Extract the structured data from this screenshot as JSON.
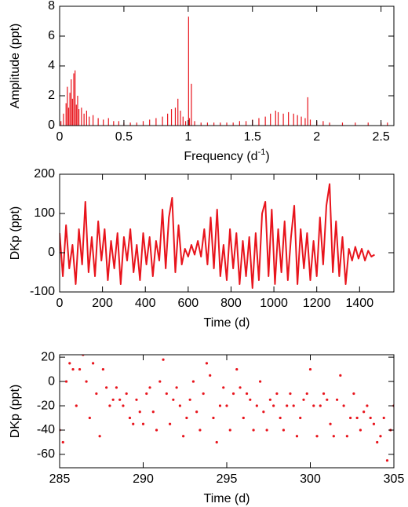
{
  "chart_data": [
    {
      "type": "impulse",
      "xlabel": [
        "Frequency (d",
        "-1",
        ")"
      ],
      "ylabel": "Amplitude (ppt)",
      "xlim": [
        0,
        2.6
      ],
      "ylim": [
        0,
        8
      ],
      "xticks": [
        0,
        0.5,
        1,
        1.5,
        2,
        2.5
      ],
      "yticks": [
        0,
        2,
        4,
        6,
        8
      ],
      "x": [
        0.01,
        0.03,
        0.05,
        0.06,
        0.07,
        0.08,
        0.09,
        0.1,
        0.11,
        0.12,
        0.13,
        0.14,
        0.15,
        0.17,
        0.19,
        0.21,
        0.23,
        0.26,
        0.3,
        0.34,
        0.38,
        0.42,
        0.46,
        0.5,
        0.55,
        0.6,
        0.65,
        0.7,
        0.75,
        0.8,
        0.84,
        0.87,
        0.9,
        0.92,
        0.94,
        0.96,
        0.98,
        1.003,
        1.01,
        1.025,
        1.05,
        1.1,
        1.15,
        1.2,
        1.25,
        1.3,
        1.35,
        1.4,
        1.45,
        1.5,
        1.55,
        1.6,
        1.64,
        1.68,
        1.7,
        1.74,
        1.78,
        1.82,
        1.85,
        1.88,
        1.91,
        1.93,
        1.95,
        2,
        2.05,
        2.1,
        2.2,
        2.3,
        2.4,
        2.5,
        2.55
      ],
      "series": [
        {
          "color": "#e8141c",
          "values": [
            0.3,
            0.8,
            1.5,
            2.6,
            1.2,
            2.2,
            3.1,
            1.8,
            3.5,
            3.7,
            1.4,
            2,
            1.1,
            1.2,
            0.8,
            1,
            0.6,
            0.7,
            0.5,
            0.4,
            0.5,
            0.3,
            0.3,
            0.2,
            0.2,
            0.2,
            0.3,
            0.4,
            0.5,
            0.6,
            0.8,
            1.1,
            1.2,
            1.8,
            1,
            0.6,
            0.3,
            7.3,
            0.5,
            2.8,
            0.3,
            0.2,
            0.2,
            0.2,
            0.2,
            0.2,
            0.2,
            0.3,
            0.3,
            0.4,
            0.5,
            0.6,
            0.8,
            1,
            0.9,
            0.8,
            0.9,
            0.8,
            0.7,
            0.6,
            0.5,
            1.9,
            0.4,
            0.3,
            0.3,
            0.2,
            0.2,
            0.2,
            0.2,
            0.2,
            0.2
          ]
        }
      ]
    },
    {
      "type": "line",
      "xlabel": "Time (d)",
      "ylabel": "DKp (ppt)",
      "xlim": [
        0,
        1560
      ],
      "ylim": [
        -100,
        200
      ],
      "xticks": [
        0,
        200,
        400,
        600,
        800,
        1000,
        1200,
        1400
      ],
      "yticks": [
        -100,
        0,
        100,
        200
      ],
      "x": [
        0,
        15,
        30,
        45,
        60,
        75,
        90,
        105,
        120,
        135,
        150,
        165,
        180,
        195,
        210,
        225,
        240,
        255,
        270,
        285,
        300,
        315,
        330,
        345,
        360,
        375,
        390,
        405,
        420,
        435,
        450,
        465,
        480,
        495,
        510,
        525,
        540,
        555,
        570,
        585,
        600,
        615,
        630,
        645,
        660,
        675,
        690,
        705,
        720,
        735,
        750,
        765,
        780,
        795,
        810,
        825,
        840,
        855,
        870,
        885,
        900,
        915,
        930,
        945,
        960,
        975,
        990,
        1005,
        1020,
        1035,
        1050,
        1065,
        1080,
        1095,
        1110,
        1125,
        1140,
        1155,
        1170,
        1185,
        1200,
        1215,
        1230,
        1245,
        1260,
        1275,
        1290,
        1305,
        1320,
        1335,
        1350,
        1365,
        1380,
        1395,
        1410,
        1425,
        1440,
        1455,
        1470
      ],
      "series": [
        {
          "color": "#e8141c",
          "values": [
            50,
            -60,
            70,
            -40,
            20,
            -80,
            60,
            -30,
            130,
            -50,
            40,
            -60,
            80,
            -20,
            60,
            -70,
            30,
            -40,
            50,
            -80,
            40,
            -20,
            60,
            -50,
            20,
            -70,
            50,
            -30,
            40,
            -60,
            30,
            -20,
            110,
            -40,
            90,
            140,
            -50,
            70,
            -30,
            10,
            -10,
            20,
            -5,
            30,
            -10,
            60,
            -30,
            90,
            -40,
            110,
            -60,
            20,
            -70,
            60,
            -40,
            50,
            -80,
            30,
            -60,
            40,
            -90,
            50,
            -70,
            100,
            130,
            -60,
            110,
            -80,
            60,
            -50,
            80,
            -70,
            40,
            120,
            -80,
            60,
            -40,
            50,
            -70,
            30,
            -60,
            90,
            -30,
            120,
            175,
            -50,
            80,
            -60,
            40,
            -80,
            10,
            -20,
            15,
            -15,
            10,
            -20,
            5,
            -10,
            -5
          ]
        }
      ]
    },
    {
      "type": "scatter",
      "xlabel": "Time (d)",
      "ylabel": "DKp (ppt)",
      "xlim": [
        285,
        305
      ],
      "ylim": [
        -71,
        22
      ],
      "xticks": [
        285,
        290,
        295,
        300,
        305
      ],
      "yticks": [
        -60,
        -40,
        -20,
        0,
        20
      ],
      "x": [
        285,
        285.2,
        285.4,
        285.6,
        285.8,
        286,
        286.2,
        286.4,
        286.6,
        286.8,
        287,
        287.2,
        287.4,
        287.6,
        287.8,
        288,
        288.2,
        288.4,
        288.6,
        288.8,
        289,
        289.2,
        289.4,
        289.6,
        289.8,
        290,
        290.2,
        290.4,
        290.6,
        290.8,
        291,
        291.2,
        291.4,
        291.6,
        291.8,
        292,
        292.2,
        292.4,
        292.6,
        292.8,
        293,
        293.2,
        293.4,
        293.6,
        293.8,
        294,
        294.2,
        294.4,
        294.6,
        294.8,
        295,
        295.2,
        295.4,
        295.6,
        295.8,
        296,
        296.2,
        296.4,
        296.6,
        296.8,
        297,
        297.2,
        297.4,
        297.6,
        297.8,
        298,
        298.2,
        298.4,
        298.6,
        298.8,
        299,
        299.2,
        299.4,
        299.6,
        299.8,
        300,
        300.2,
        300.4,
        300.6,
        300.8,
        301,
        301.2,
        301.4,
        301.6,
        301.8,
        302,
        302.2,
        302.4,
        302.6,
        302.8,
        303,
        303.2,
        303.4,
        303.6,
        303.8,
        304,
        304.2,
        304.4,
        304.6,
        304.8,
        305
      ],
      "series": [
        {
          "color": "#e8141c",
          "values": [
            -40,
            -50,
            0,
            15,
            10,
            -20,
            10,
            22,
            0,
            -30,
            15,
            -10,
            -45,
            10,
            -5,
            -20,
            -15,
            -5,
            -15,
            -20,
            -10,
            -30,
            -35,
            -15,
            -25,
            -35,
            -10,
            -5,
            -25,
            -40,
            0,
            18,
            -10,
            -35,
            -15,
            -5,
            -20,
            -45,
            -30,
            -15,
            0,
            -25,
            -40,
            -10,
            15,
            5,
            -30,
            -50,
            -20,
            -5,
            -20,
            -40,
            -10,
            10,
            -5,
            -30,
            -10,
            -15,
            -40,
            -20,
            0,
            -25,
            -40,
            -15,
            -20,
            -10,
            -30,
            -40,
            -20,
            -10,
            -20,
            -45,
            -30,
            -15,
            -10,
            10,
            -20,
            -45,
            -20,
            -10,
            -15,
            -35,
            -45,
            -15,
            5,
            -20,
            -45,
            -30,
            -10,
            -30,
            -40,
            -25,
            -20,
            -30,
            -35,
            -50,
            -45,
            -30,
            -65,
            -40,
            -20
          ]
        }
      ]
    }
  ]
}
